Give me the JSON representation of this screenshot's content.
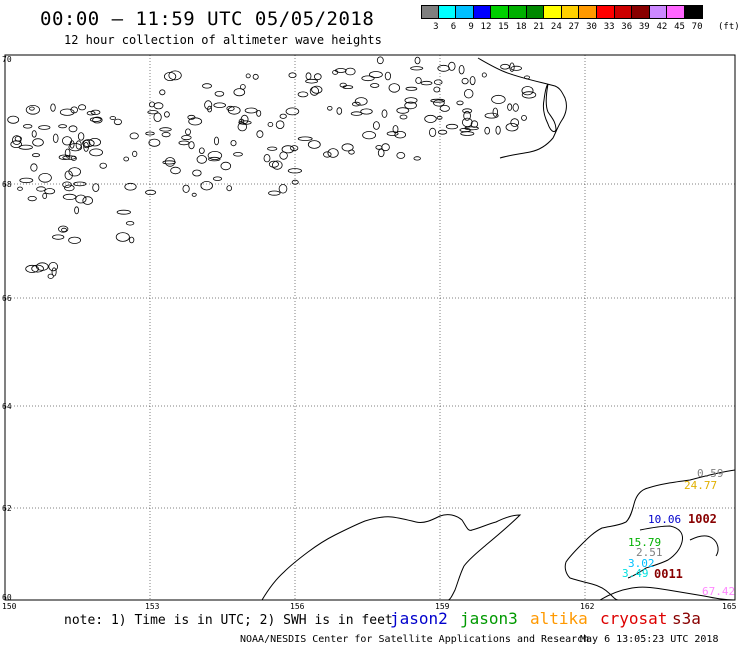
{
  "header": {
    "title": "00:00 – 11:59 UTC 05/05/2018",
    "subtitle": "12 hour collection of altimeter wave heights"
  },
  "legend": {
    "colors": [
      "#7f7f7f",
      "#00ffff",
      "#00c0ff",
      "#0000ff",
      "#00d000",
      "#00b000",
      "#008800",
      "#ffff00",
      "#ffd000",
      "#ff9900",
      "#ff0000",
      "#cc0000",
      "#880000",
      "#cc88ff",
      "#ff66ff",
      "#000000"
    ],
    "labels": [
      "3",
      "6",
      "9",
      "12",
      "15",
      "18",
      "21",
      "24",
      "27",
      "30",
      "33",
      "36",
      "39",
      "42",
      "45",
      "70"
    ],
    "unit": "(ft)"
  },
  "axes": {
    "lat_labels": [
      "70",
      "68",
      "66",
      "64",
      "62",
      "60"
    ],
    "lon_labels": [
      "150",
      "153",
      "156",
      "159",
      "162",
      "165"
    ]
  },
  "swh_values": [
    {
      "value": "0.59",
      "color": "#7f7f7f"
    },
    {
      "value": "24.77",
      "color": "#e0b000"
    },
    {
      "value": "10.06",
      "color": "#0000cc"
    },
    {
      "value": "15.79",
      "color": "#00b000"
    },
    {
      "value": "2.51",
      "color": "#7f7f7f"
    },
    {
      "value": "3.02",
      "color": "#00c0ff"
    },
    {
      "value": "3.49",
      "color": "#00e0e0"
    },
    {
      "value": "67.42",
      "color": "#ff88ff"
    }
  ],
  "buoys": [
    {
      "id": "1002",
      "color": "#880000"
    },
    {
      "id": "0011",
      "color": "#880000"
    }
  ],
  "footer": {
    "note": "note: 1) Time is in UTC; 2) SWH is in feet",
    "satellites": [
      {
        "name": "jason2",
        "color": "#0000cc"
      },
      {
        "name": "jason3",
        "color": "#009900"
      },
      {
        "name": "altika",
        "color": "#ff9900"
      },
      {
        "name": "cryosat",
        "color": "#dd0000"
      },
      {
        "name": "s3a",
        "color": "#880000"
      }
    ],
    "credit": "NOAA/NESDIS Center for Satellite Applications and Research",
    "timestamp": "May  6 13:05:23 UTC 2018"
  }
}
